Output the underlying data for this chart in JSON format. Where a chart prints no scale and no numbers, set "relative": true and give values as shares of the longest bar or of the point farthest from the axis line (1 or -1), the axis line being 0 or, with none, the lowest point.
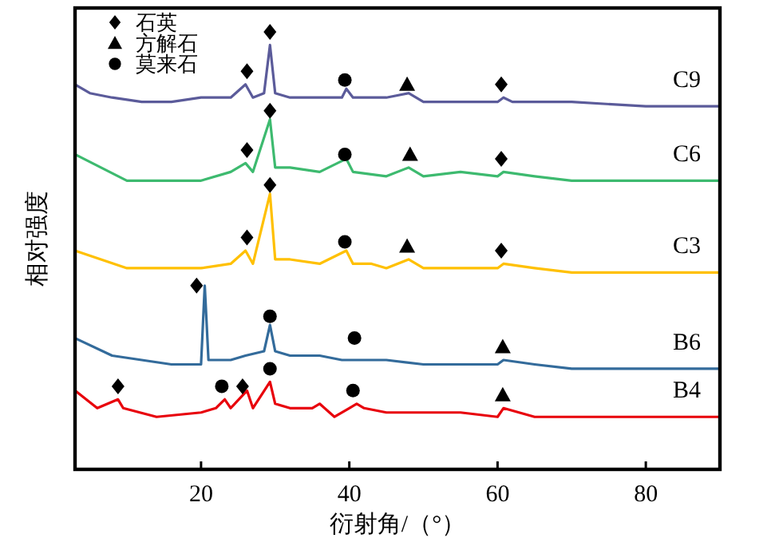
{
  "chart_data": {
    "type": "line",
    "relative": true,
    "xlabel": "衍射角/（°）",
    "ylabel": "相对强度",
    "xlim": [
      3,
      90
    ],
    "xticks": [
      20,
      40,
      60,
      80
    ],
    "legend": "top left",
    "series": [
      {
        "name": "C9",
        "color": "#5b5b9a",
        "x": [
          3,
          5,
          8,
          12,
          16,
          20,
          24,
          26,
          27,
          28.5,
          29.3,
          30,
          32,
          36,
          39,
          39.6,
          40.5,
          45,
          48,
          50,
          55,
          60,
          60.8,
          62,
          70,
          80,
          90
        ],
        "values": [
          0.88,
          0.86,
          0.85,
          0.84,
          0.84,
          0.85,
          0.85,
          0.88,
          0.85,
          0.86,
          0.97,
          0.86,
          0.85,
          0.85,
          0.85,
          0.87,
          0.85,
          0.85,
          0.86,
          0.84,
          0.84,
          0.84,
          0.85,
          0.84,
          0.84,
          0.83,
          0.83
        ]
      },
      {
        "name": "C6",
        "color": "#3dba6f",
        "x": [
          3,
          10,
          20,
          24,
          26,
          27,
          29.3,
          30,
          32,
          36,
          39.6,
          40.5,
          45,
          48,
          50,
          55,
          60,
          60.8,
          65,
          70,
          80,
          90
        ],
        "values": [
          0.72,
          0.66,
          0.66,
          0.68,
          0.7,
          0.68,
          0.8,
          0.69,
          0.69,
          0.68,
          0.71,
          0.68,
          0.67,
          0.69,
          0.67,
          0.68,
          0.67,
          0.68,
          0.67,
          0.66,
          0.66,
          0.66
        ]
      },
      {
        "name": "C3",
        "color": "#ffc000",
        "x": [
          3,
          10,
          20,
          24,
          26,
          27,
          29.3,
          30,
          32,
          36,
          39.6,
          40.5,
          43,
          45,
          48,
          50,
          55,
          60,
          60.8,
          65,
          70,
          80,
          90
        ],
        "values": [
          0.5,
          0.46,
          0.46,
          0.47,
          0.5,
          0.47,
          0.63,
          0.48,
          0.48,
          0.47,
          0.5,
          0.47,
          0.47,
          0.46,
          0.48,
          0.46,
          0.46,
          0.46,
          0.47,
          0.46,
          0.45,
          0.45,
          0.45
        ]
      },
      {
        "name": "B6",
        "color": "#336b9b",
        "x": [
          3,
          8,
          12,
          16,
          20,
          20.5,
          21,
          24,
          26,
          28.5,
          29.3,
          30,
          32,
          36,
          39,
          41,
          45,
          50,
          55,
          60,
          60.8,
          65,
          70,
          80,
          90
        ],
        "values": [
          0.3,
          0.26,
          0.25,
          0.24,
          0.24,
          0.42,
          0.25,
          0.25,
          0.26,
          0.27,
          0.33,
          0.27,
          0.26,
          0.26,
          0.25,
          0.25,
          0.25,
          0.24,
          0.24,
          0.24,
          0.25,
          0.24,
          0.23,
          0.23,
          0.23
        ]
      },
      {
        "name": "B4",
        "color": "#e8000b",
        "x": [
          3,
          6,
          8.8,
          9.5,
          14,
          20,
          22,
          23.2,
          24,
          26.2,
          27,
          29.3,
          30,
          32,
          35,
          36,
          38,
          40,
          41,
          42,
          45,
          50,
          55,
          60,
          60.8,
          65,
          70,
          80,
          90
        ],
        "values": [
          0.18,
          0.14,
          0.16,
          0.14,
          0.12,
          0.13,
          0.14,
          0.16,
          0.14,
          0.18,
          0.14,
          0.2,
          0.15,
          0.14,
          0.14,
          0.15,
          0.12,
          0.14,
          0.15,
          0.14,
          0.13,
          0.13,
          0.13,
          0.12,
          0.14,
          0.12,
          0.12,
          0.12,
          0.12
        ]
      },
      {
        "name": "石英",
        "type": "scatter",
        "marker": "diamond",
        "color": "#000000",
        "x": [
          26.2,
          29.3,
          60.5,
          26.2,
          29.3,
          60.5,
          26.2,
          29.3,
          60.5,
          19.4,
          8.8,
          25.6
        ],
        "values": [
          0.91,
          1.0,
          0.88,
          0.73,
          0.82,
          0.71,
          0.53,
          0.65,
          0.5,
          0.42,
          0.19,
          0.19
        ]
      },
      {
        "name": "方解石",
        "type": "scatter",
        "marker": "triangle",
        "color": "#000000",
        "x": [
          47.8,
          48.2,
          47.8,
          60.7,
          60.7
        ],
        "values": [
          0.88,
          0.72,
          0.51,
          0.28,
          0.17
        ]
      },
      {
        "name": "莫来石",
        "type": "scatter",
        "marker": "circle",
        "color": "#000000",
        "x": [
          39.4,
          39.4,
          39.4,
          29.3,
          40.7,
          22.8,
          29.3,
          40.5
        ],
        "values": [
          0.89,
          0.72,
          0.52,
          0.35,
          0.3,
          0.19,
          0.23,
          0.18
        ]
      }
    ]
  }
}
